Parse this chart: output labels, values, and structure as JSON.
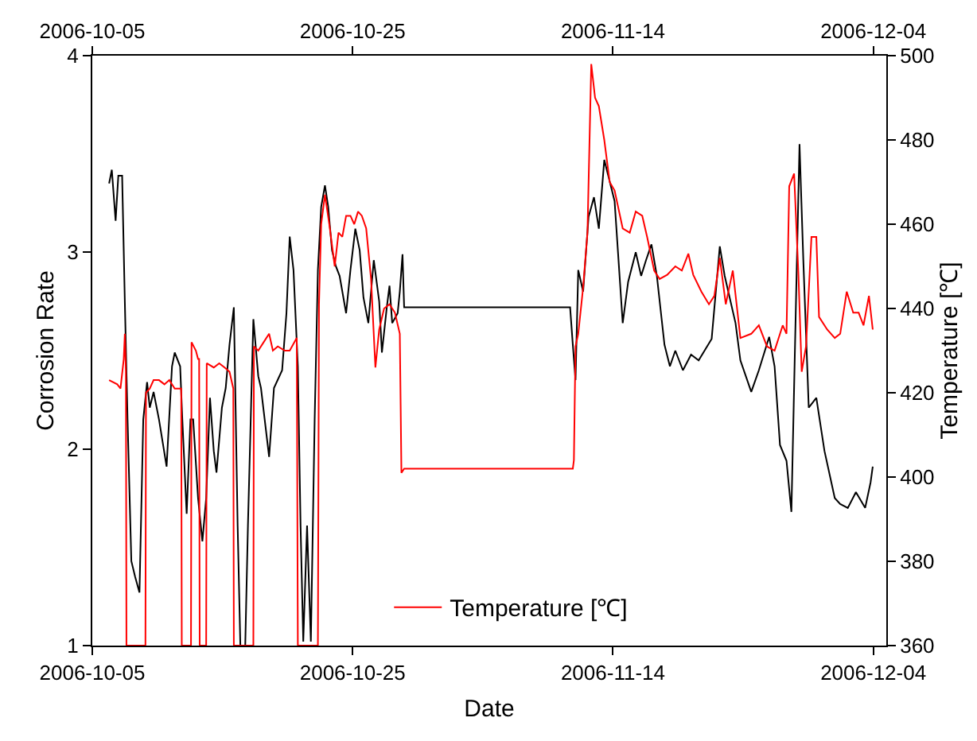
{
  "chart_data": {
    "type": "line",
    "xlabel": "Date",
    "ylabel": "Corrosion Rate",
    "y2label": "Temperature [℃]",
    "xlim": [
      "2006-10-05",
      "2006-12-05"
    ],
    "xticks": [
      "2006-10-05",
      "2006-10-25",
      "2006-11-14",
      "2006-12-04"
    ],
    "x2lim": [
      "2006-10-05",
      "2006-12-05"
    ],
    "x2ticks": [
      "2006-10-05",
      "2006-10-25",
      "2006-11-14",
      "2006-12-04"
    ],
    "ylim": [
      1,
      4
    ],
    "yticks": [
      1,
      2,
      3,
      4
    ],
    "y2lim": [
      360,
      500
    ],
    "y2ticks": [
      360,
      380,
      400,
      420,
      440,
      460,
      480,
      500
    ],
    "legend": "bottom",
    "marker": "none",
    "line_style": "solid",
    "series": [
      {
        "color": "#000000",
        "x": [
          "2006-10-06T07:00",
          "2006-10-06T12:00",
          "2006-10-06T19:00",
          "2006-10-07T00:00",
          "2006-10-07T07:00",
          "2006-10-07T12:00",
          "2006-10-07T17:00",
          "2006-10-08T00:00",
          "2006-10-08T07:00",
          "2006-10-08T15:00",
          "2006-10-08T22:00",
          "2006-10-09T05:00",
          "2006-10-09T10:00",
          "2006-10-09T17:00",
          "2006-10-10T03:00",
          "2006-10-10T17:00",
          "2006-10-11T03:00",
          "2006-10-11T08:00",
          "2006-10-11T18:00",
          "2006-10-11T22:00",
          "2006-10-12T06:00",
          "2006-10-12T13:00",
          "2006-10-12T18:00",
          "2006-10-13T03:00",
          "2006-10-13T11:00",
          "2006-10-13T18:00",
          "2006-10-14T01:00",
          "2006-10-14T08:00",
          "2006-10-14T13:00",
          "2006-10-14T23:00",
          "2006-10-15T06:00",
          "2006-10-15T13:00",
          "2006-10-15T21:00",
          "2006-10-16T04:00",
          "2006-10-16T09:00",
          "2006-10-16T18:00",
          "2006-10-16T23:00",
          "2006-10-17T09:00",
          "2006-10-17T18:00",
          "2006-10-17T23:00",
          "2006-10-18T14:00",
          "2006-10-18T23:00",
          "2006-10-19T14:00",
          "2006-10-19T22:00",
          "2006-10-20T04:00",
          "2006-10-20T11:00",
          "2006-10-20T19:00",
          "2006-10-21T00:00",
          "2006-10-21T05:00",
          "2006-10-21T12:00",
          "2006-10-21T19:00",
          "2006-10-22T02:00",
          "2006-10-22T08:00",
          "2006-10-22T14:00",
          "2006-10-22T21:00",
          "2006-10-23T03:00",
          "2006-10-23T10:00",
          "2006-10-23T17:00",
          "2006-10-24T00:00",
          "2006-10-24T12:00",
          "2006-10-24T20:00",
          "2006-10-25T05:00",
          "2006-10-25T13:00",
          "2006-10-25T20:00",
          "2006-10-26T05:00",
          "2006-10-26T15:00",
          "2006-10-27T01:00",
          "2006-10-27T06:00",
          "2006-10-27T15:00",
          "2006-10-27T20:00",
          "2006-10-28T01:00",
          "2006-10-28T11:00",
          "2006-10-28T15:00",
          "2006-10-28T20:00",
          "2006-10-28T23:00",
          "2006-11-10T17:00",
          "2006-11-10T22:00",
          "2006-11-11T03:00",
          "2006-11-11T08:00",
          "2006-11-11T17:00",
          "2006-11-12T03:00",
          "2006-11-12T13:00",
          "2006-11-12T22:00",
          "2006-11-13T08:00",
          "2006-11-13T18:00",
          "2006-11-14T03:00",
          "2006-11-14T18:00",
          "2006-11-15T04:00",
          "2006-11-15T18:00",
          "2006-11-16T04:00",
          "2006-11-16T13:00",
          "2006-11-16T23:00",
          "2006-11-17T09:00",
          "2006-11-17T23:00",
          "2006-11-18T09:00",
          "2006-11-18T19:00",
          "2006-11-19T09:00",
          "2006-11-20T00:00",
          "2006-11-20T14:00",
          "2006-11-21T14:00",
          "2006-11-22T05:00",
          "2006-11-22T14:00",
          "2006-11-23T10:00",
          "2006-11-23T19:00",
          "2006-11-24T15:00",
          "2006-11-25T05:00",
          "2006-11-26T00:00",
          "2006-11-26T10:00",
          "2006-11-26T20:00",
          "2006-11-27T08:00",
          "2006-11-27T17:00",
          "2006-11-28T01:00",
          "2006-11-28T08:00",
          "2006-11-28T15:00",
          "2006-11-29T01:00",
          "2006-11-29T15:00",
          "2006-11-30T06:00",
          "2006-12-01T01:00",
          "2006-12-01T11:00",
          "2006-12-02T01:00",
          "2006-12-02T16:00",
          "2006-12-03T09:00",
          "2006-12-03T19:00",
          "2006-12-03T23:00"
        ],
        "values": [
          3.35,
          3.42,
          3.16,
          3.39,
          3.39,
          2.75,
          2.15,
          1.43,
          1.35,
          1.27,
          2.15,
          2.34,
          2.21,
          2.29,
          2.15,
          1.91,
          2.42,
          2.49,
          2.42,
          2.15,
          1.67,
          2.15,
          2.15,
          1.75,
          1.53,
          1.75,
          2.26,
          1.99,
          1.88,
          2.21,
          2.31,
          2.53,
          2.72,
          1.61,
          1.0,
          1.0,
          1.61,
          2.66,
          2.37,
          2.31,
          1.96,
          2.31,
          2.4,
          2.69,
          3.08,
          2.91,
          2.42,
          1.61,
          1.02,
          1.61,
          1.02,
          2.15,
          2.91,
          3.23,
          3.34,
          3.23,
          3.01,
          2.93,
          2.88,
          2.69,
          2.91,
          3.12,
          3.01,
          2.77,
          2.64,
          2.96,
          2.75,
          2.49,
          2.72,
          2.83,
          2.64,
          2.69,
          2.8,
          2.99,
          2.72,
          2.72,
          2.53,
          2.35,
          2.91,
          2.8,
          3.18,
          3.28,
          3.12,
          3.47,
          3.36,
          3.26,
          2.64,
          2.85,
          3.0,
          2.88,
          2.96,
          3.04,
          2.88,
          2.53,
          2.42,
          2.5,
          2.4,
          2.48,
          2.45,
          2.56,
          3.03,
          2.88,
          2.64,
          2.45,
          2.29,
          2.4,
          2.57,
          2.42,
          2.02,
          1.94,
          1.68,
          2.69,
          3.55,
          2.96,
          2.21,
          2.26,
          1.99,
          1.75,
          1.72,
          1.7,
          1.78,
          1.7,
          1.83,
          1.91
        ]
      },
      {
        "name": "Temperature [℃]",
        "color": "#ff0000",
        "axis": "y2",
        "x": [
          "2006-10-06T07:00",
          "2006-10-06T22:00",
          "2006-10-07T04:00",
          "2006-10-07T10:00",
          "2006-10-07T12:00",
          "2006-10-07T14:00",
          "2006-10-07T15:00",
          "2006-10-09T02:00",
          "2006-10-09T03:00",
          "2006-10-09T10:00",
          "2006-10-09T17:00",
          "2006-10-10T03:00",
          "2006-10-10T13:00",
          "2006-10-10T22:00",
          "2006-10-11T08:00",
          "2006-10-11T20:00",
          "2006-10-11T21:00",
          "2006-10-12T14:00",
          "2006-10-12T15:00",
          "2006-10-12T23:00",
          "2006-10-13T03:00",
          "2006-10-13T05:00",
          "2006-10-13T06:00",
          "2006-10-13T18:00",
          "2006-10-13T19:00",
          "2006-10-14T08:00",
          "2006-10-14T18:00",
          "2006-10-15T04:00",
          "2006-10-15T13:00",
          "2006-10-15T20:00",
          "2006-10-15T21:00",
          "2006-10-17T09:00",
          "2006-10-17T10:00",
          "2006-10-17T18:00",
          "2006-10-18T04:00",
          "2006-10-18T14:00",
          "2006-10-18T21:00",
          "2006-10-19T06:00",
          "2006-10-19T19:00",
          "2006-10-20T04:00",
          "2006-10-20T17:00",
          "2006-10-20T19:00",
          "2006-10-22T08:00",
          "2006-10-22T10:00",
          "2006-10-22T14:00",
          "2006-10-22T21:00",
          "2006-10-23T05:00",
          "2006-10-23T15:00",
          "2006-10-23T22:00",
          "2006-10-24T05:00",
          "2006-10-24T12:00",
          "2006-10-24T20:00",
          "2006-10-25T03:00",
          "2006-10-25T10:00",
          "2006-10-25T17:00",
          "2006-10-26T01:00",
          "2006-10-26T10:00",
          "2006-10-26T18:00",
          "2006-10-27T01:00",
          "2006-10-27T10:00",
          "2006-10-27T20:00",
          "2006-10-28T06:00",
          "2006-10-28T15:00",
          "2006-10-28T18:00",
          "2006-10-28T23:00",
          "2006-11-10T17:00",
          "2006-11-10T22:00",
          "2006-11-11T00:00",
          "2006-11-11T03:00",
          "2006-11-11T08:00",
          "2006-11-11T17:00",
          "2006-11-12T01:00",
          "2006-11-12T08:00",
          "2006-11-12T15:00",
          "2006-11-12T22:00",
          "2006-11-13T08:00",
          "2006-11-13T18:00",
          "2006-11-14T03:00",
          "2006-11-14T18:00",
          "2006-11-15T07:00",
          "2006-11-15T18:00",
          "2006-11-16T06:00",
          "2006-11-16T15:00",
          "2006-11-17T04:00",
          "2006-11-17T14:00",
          "2006-11-18T04:00",
          "2006-11-18T19:00",
          "2006-11-19T07:00",
          "2006-11-19T19:00",
          "2006-11-20T04:00",
          "2006-11-20T19:00",
          "2006-11-21T09:00",
          "2006-11-21T19:00",
          "2006-11-22T05:00",
          "2006-11-22T16:00",
          "2006-11-23T05:00",
          "2006-11-23T19:00",
          "2006-11-24T15:00",
          "2006-11-25T05:00",
          "2006-11-25T20:00",
          "2006-11-26T10:00",
          "2006-11-27T01:00",
          "2006-11-27T08:00",
          "2006-11-27T13:00",
          "2006-11-27T22:00",
          "2006-11-28T06:00",
          "2006-11-28T12:00",
          "2006-11-28T20:00",
          "2006-11-29T06:00",
          "2006-11-29T15:00",
          "2006-11-29T20:00",
          "2006-11-30T11:00",
          "2006-12-01T01:00",
          "2006-12-01T11:00",
          "2006-12-01T23:00",
          "2006-12-02T11:00",
          "2006-12-02T21:00",
          "2006-12-03T06:00",
          "2006-12-03T16:00",
          "2006-12-03T23:00"
        ],
        "values": [
          423,
          422,
          421,
          428,
          434,
          425,
          360,
          360,
          420,
          421,
          423,
          423,
          422,
          423,
          421,
          421,
          360,
          360,
          432,
          430,
          428,
          428,
          360,
          360,
          427,
          426,
          427,
          426,
          425,
          421,
          360,
          360,
          431,
          430,
          432,
          434,
          430,
          431,
          430,
          430,
          433,
          360,
          360,
          441,
          460,
          467,
          460,
          450,
          458,
          457,
          462,
          462,
          460,
          463,
          462,
          459,
          447,
          426,
          435,
          440,
          441,
          439,
          434,
          401,
          402,
          402,
          402,
          404,
          431,
          434,
          445,
          458,
          498,
          490,
          488,
          480,
          470,
          468,
          459,
          458,
          463,
          462,
          457,
          449,
          447,
          448,
          450,
          449,
          453,
          448,
          444,
          441,
          443,
          452,
          441,
          449,
          433,
          434,
          436,
          431,
          430,
          436,
          434,
          469,
          472,
          448,
          425,
          431,
          457,
          457,
          438,
          435,
          433,
          434,
          444,
          439,
          439,
          436,
          443,
          435
        ]
      }
    ]
  }
}
